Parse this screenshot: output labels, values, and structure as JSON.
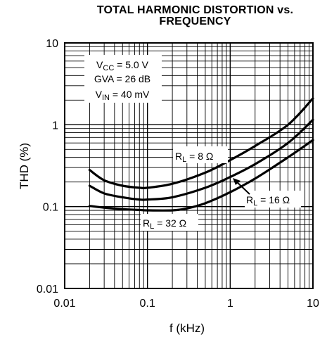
{
  "chart_data": {
    "type": "line",
    "title_line1": "TOTAL HARMONIC DISTORTION vs.",
    "title_line2": "FREQUENCY",
    "xlabel": "f (kHz)",
    "ylabel": "THD (%)",
    "x_scale": "log",
    "y_scale": "log",
    "xlim": [
      0.01,
      10
    ],
    "ylim": [
      0.01,
      10
    ],
    "grid": true,
    "x_tick_labels": [
      "0.01",
      "0.1",
      "1",
      "10"
    ],
    "y_tick_labels": [
      "0.01",
      "0.1",
      "1",
      "10"
    ],
    "conditions": {
      "vcc_main": "V",
      "vcc_sub": "CC",
      "vcc_rest": " = 5.0 V",
      "gva": "GVA = 26 dB",
      "vin_main": "V",
      "vin_sub": "IN",
      "vin_rest": " = 40 mV"
    },
    "series": [
      {
        "label_main": "R",
        "label_sub": "L",
        "label_rest": " = 8 Ω",
        "x": [
          0.02,
          0.03,
          0.05,
          0.08,
          0.1,
          0.2,
          0.5,
          1,
          2,
          5,
          10
        ],
        "y": [
          0.28,
          0.21,
          0.18,
          0.17,
          0.17,
          0.19,
          0.26,
          0.37,
          0.55,
          1.0,
          2.1
        ]
      },
      {
        "label_main": "R",
        "label_sub": "L",
        "label_rest": " = 16 Ω",
        "x": [
          0.02,
          0.03,
          0.05,
          0.08,
          0.1,
          0.2,
          0.5,
          1,
          2,
          5,
          10
        ],
        "y": [
          0.18,
          0.145,
          0.13,
          0.122,
          0.122,
          0.13,
          0.17,
          0.23,
          0.33,
          0.6,
          1.15
        ]
      },
      {
        "label_main": "R",
        "label_sub": "L",
        "label_rest": " = 32 Ω",
        "x": [
          0.02,
          0.03,
          0.05,
          0.08,
          0.1,
          0.2,
          0.3,
          0.5,
          1,
          2,
          5,
          10
        ],
        "y": [
          0.102,
          0.097,
          0.093,
          0.091,
          0.09,
          0.09,
          0.095,
          0.11,
          0.15,
          0.22,
          0.4,
          0.65
        ]
      }
    ]
  }
}
